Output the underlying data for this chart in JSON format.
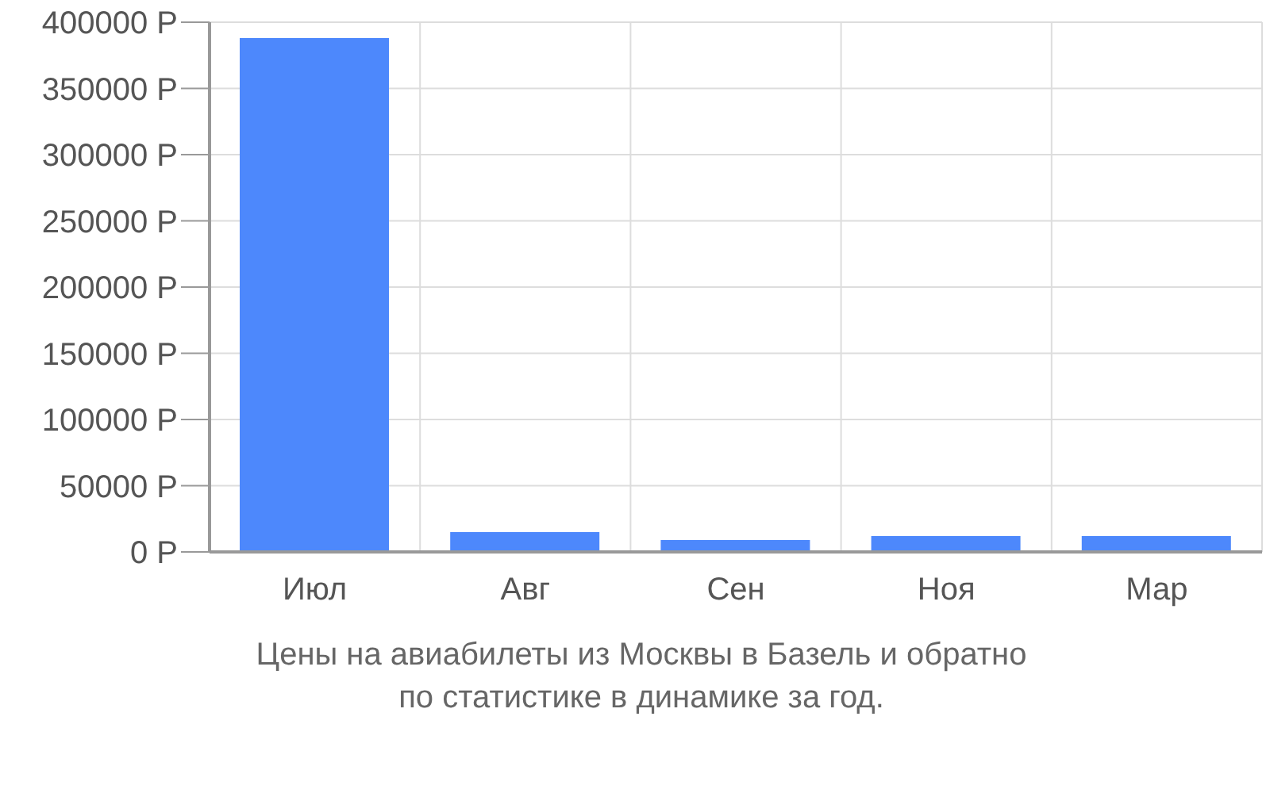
{
  "chart_data": {
    "type": "bar",
    "categories": [
      "Июл",
      "Авг",
      "Сен",
      "Ноя",
      "Мар"
    ],
    "values": [
      388000,
      15000,
      9000,
      12000,
      12000
    ],
    "color": "#4d88fc",
    "ylim": [
      0,
      400000
    ],
    "yticks": [
      {
        "value": 0,
        "label": "0 Р"
      },
      {
        "value": 50000,
        "label": "50000 Р"
      },
      {
        "value": 100000,
        "label": "100000 Р"
      },
      {
        "value": 150000,
        "label": "150000 Р"
      },
      {
        "value": 200000,
        "label": "200000 Р"
      },
      {
        "value": 250000,
        "label": "250000 Р"
      },
      {
        "value": 300000,
        "label": "300000 Р"
      },
      {
        "value": 350000,
        "label": "350000 Р"
      },
      {
        "value": 400000,
        "label": "400000 Р"
      }
    ],
    "grid": true,
    "annotations": [
      "Цены на авиабилеты из Москвы в Базель и обратно",
      "по статистике в динамике за год."
    ]
  }
}
